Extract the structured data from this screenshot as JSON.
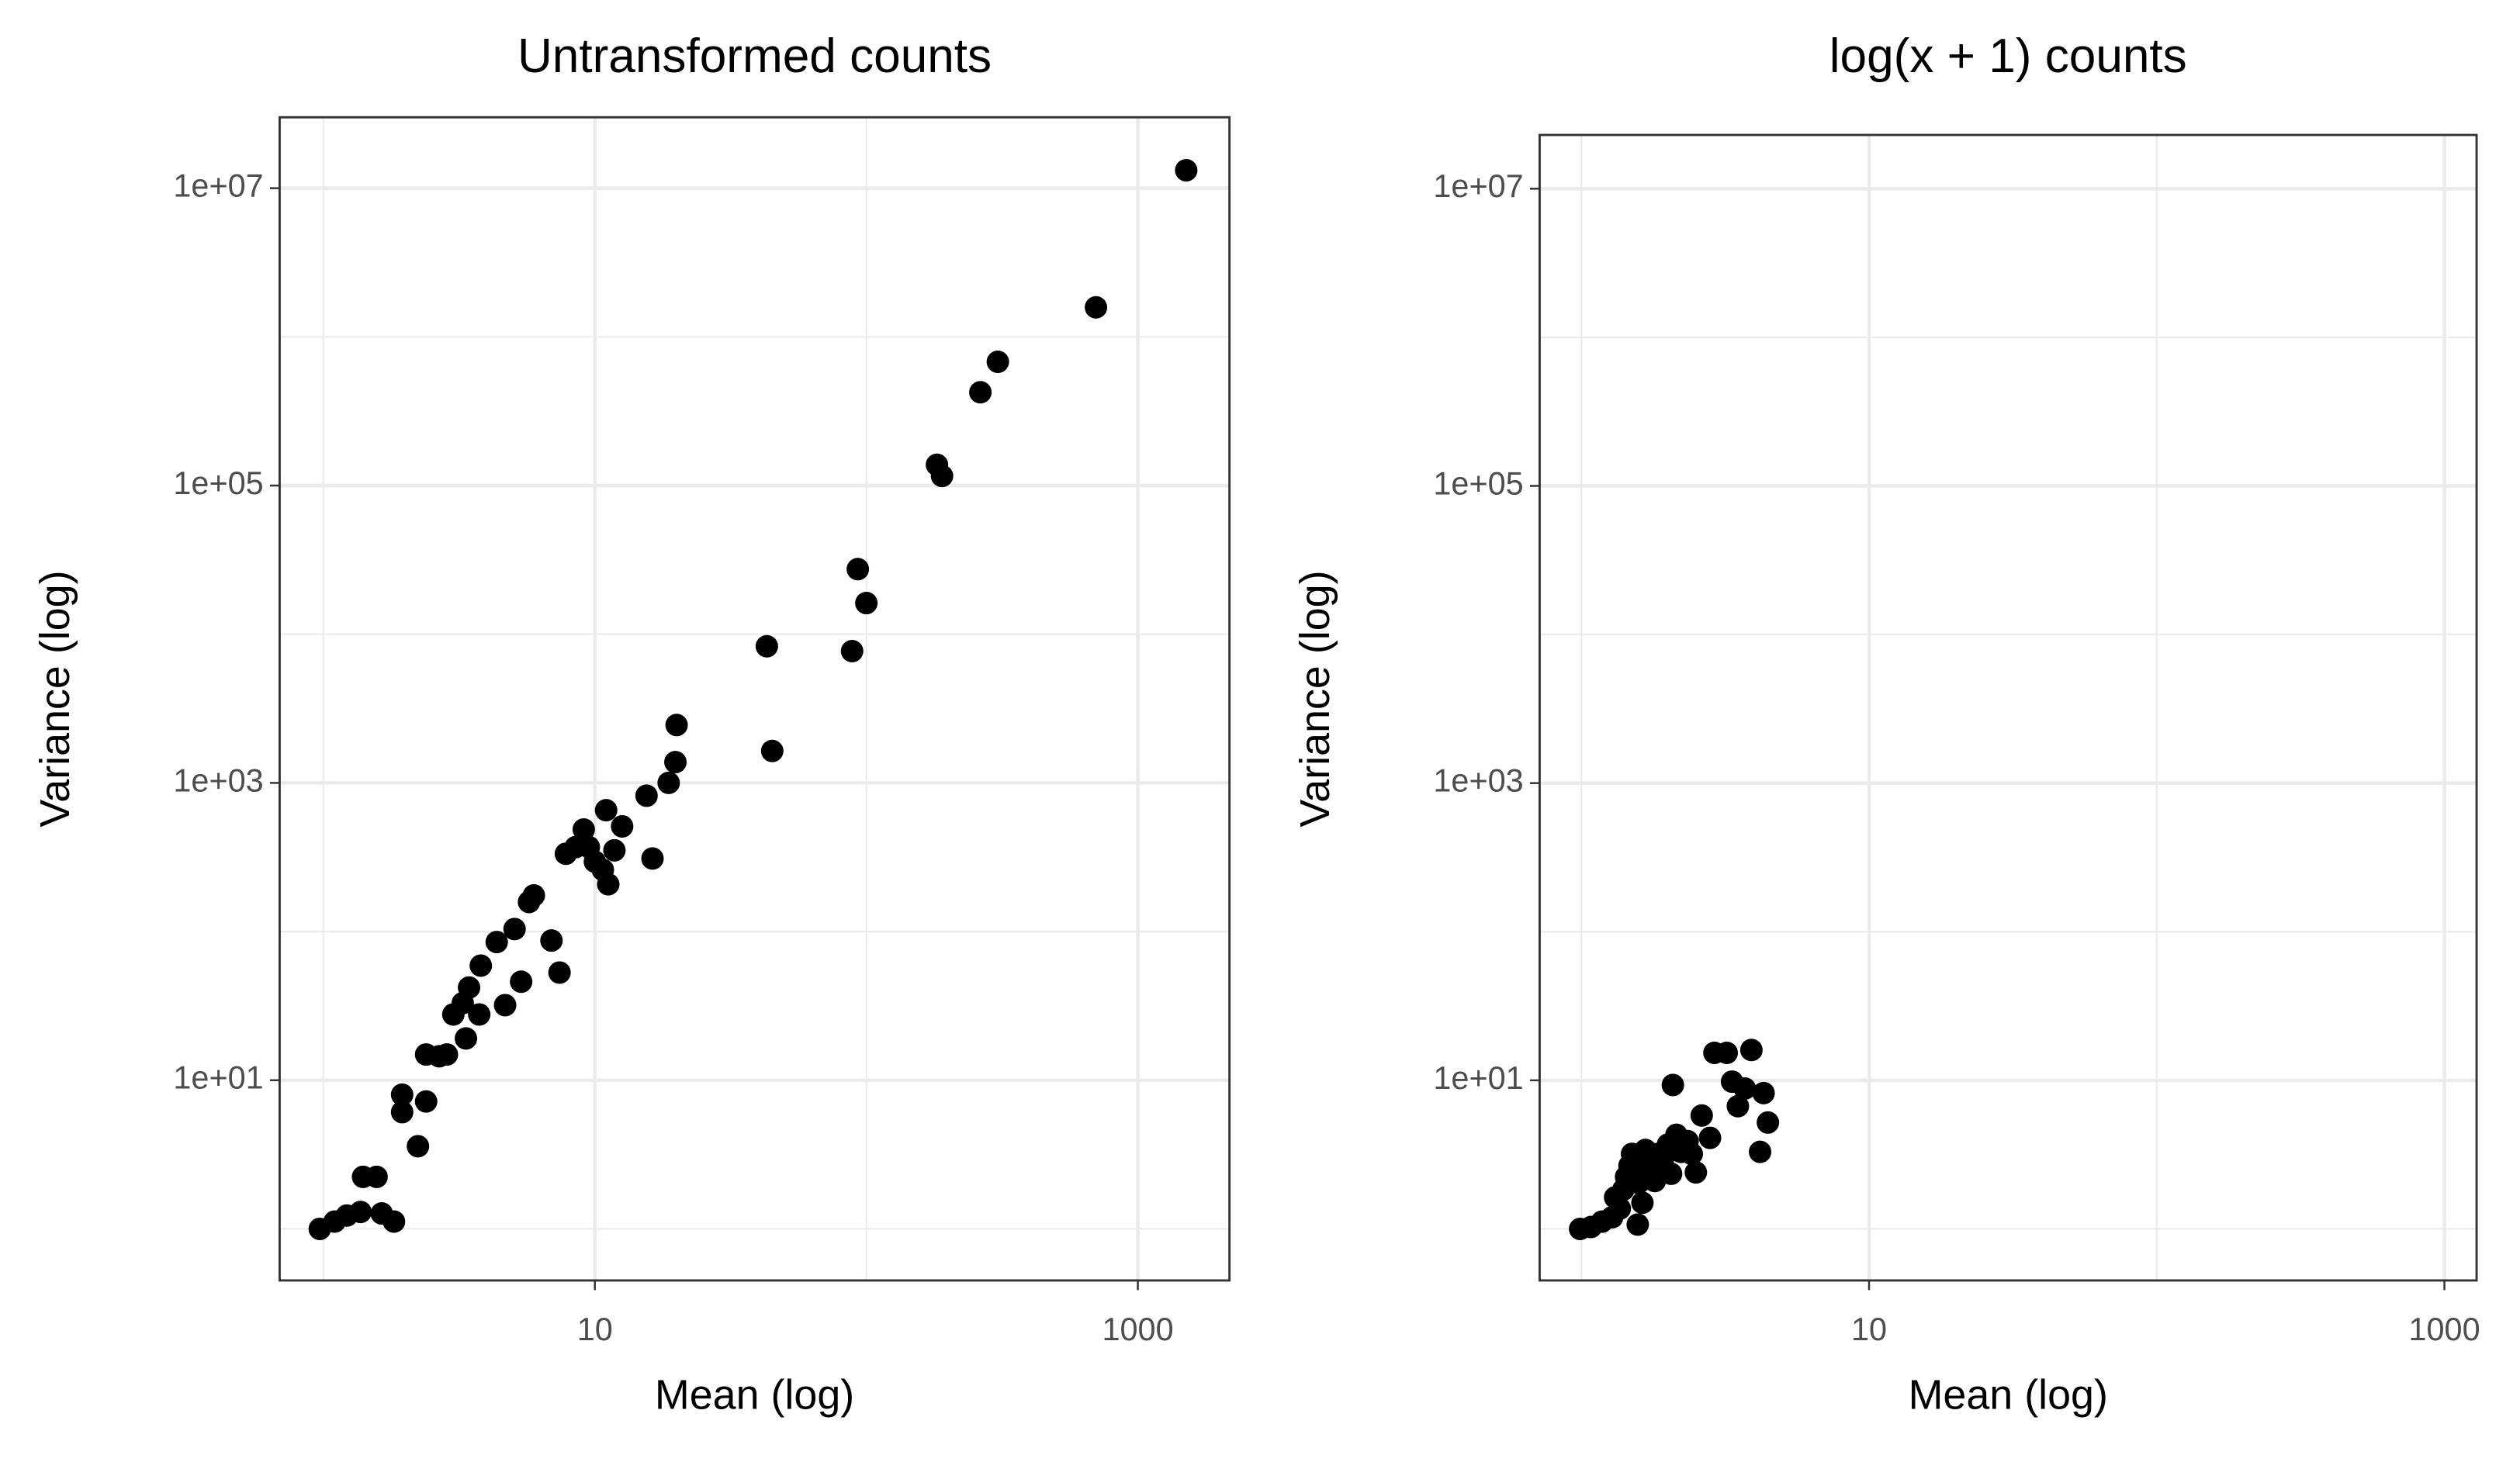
{
  "chart_data": [
    {
      "type": "scatter",
      "title": "Untransformed counts",
      "xlabel": "Mean (log)",
      "ylabel": "Variance (log)",
      "log_x": true,
      "log_y": true,
      "grid": true,
      "color": "#000000",
      "xlim": [
        0.69,
        2175
      ],
      "ylim": [
        0.45,
        30000000
      ],
      "xticks": [
        10,
        1000
      ],
      "minor_xticks": [
        1,
        100
      ],
      "yticks": [
        {
          "value": 10,
          "label": "1e+01"
        },
        {
          "value": 1000,
          "label": "1e+03"
        },
        {
          "value": 100000,
          "label": "1e+05"
        },
        {
          "value": 10000000,
          "label": "1e+07"
        }
      ],
      "minor_yticks": [
        1,
        100,
        10000,
        1000000
      ],
      "x": [
        0.97,
        1.1,
        1.22,
        1.37,
        1.4,
        1.57,
        1.64,
        1.82,
        1.95,
        1.95,
        2.23,
        2.39,
        2.39,
        2.67,
        2.85,
        3.01,
        3.26,
        3.35,
        3.44,
        3.75,
        3.8,
        4.35,
        4.67,
        5.06,
        5.35,
        5.72,
        5.96,
        6.92,
        7.41,
        7.82,
        8.5,
        9.1,
        9.5,
        10,
        10.7,
        11,
        11.2,
        11.8,
        12.6,
        15.5,
        16.3,
        18.7,
        19.8,
        20,
        43,
        45,
        88.6,
        93,
        100,
        182,
        190,
        263,
        305,
        701,
        1507
      ],
      "y": [
        1,
        1.12,
        1.23,
        1.3,
        2.24,
        2.24,
        1.27,
        1.12,
        8,
        6.1,
        3.6,
        7.2,
        14.9,
        14.5,
        14.9,
        27.7,
        33,
        19.1,
        42,
        27.7,
        59,
        85,
        32,
        104,
        46,
        158,
        175,
        87,
        53,
        334,
        370,
        486,
        370,
        295,
        260,
        655,
        208,
        352,
        510,
        820,
        310,
        1000,
        1380,
        2450,
        8300,
        1640,
        7700,
        27400,
        16200,
        138000,
        116000,
        424000,
        680000,
        1580000,
        13200000
      ]
    },
    {
      "type": "scatter",
      "title": "log(x + 1) counts",
      "xlabel": "Mean (log)",
      "ylabel": "Variance (log)",
      "log_x": true,
      "log_y": true,
      "grid": true,
      "color": "#000000",
      "xlim": [
        0.716,
        1294
      ],
      "ylim": [
        0.45,
        23000000
      ],
      "xticks": [
        10,
        1000
      ],
      "minor_xticks": [
        1,
        100
      ],
      "yticks": [
        {
          "value": 10,
          "label": "1e+01"
        },
        {
          "value": 1000,
          "label": "1e+03"
        },
        {
          "value": 100000,
          "label": "1e+05"
        },
        {
          "value": 10000000,
          "label": "1e+07"
        }
      ],
      "minor_yticks": [
        1,
        100,
        10000,
        1000000
      ],
      "x": [
        0.99,
        1.08,
        1.18,
        1.28,
        1.36,
        1.31,
        1.4,
        1.43,
        1.47,
        1.5,
        1.55,
        1.58,
        1.57,
        1.63,
        1.67,
        1.74,
        1.8,
        1.85,
        1.92,
        2.0,
        2.05,
        2.14,
        2.22,
        2.34,
        2.08,
        2.42,
        2.5,
        2.62,
        2.8,
        2.9,
        3.2,
        3.34,
        3.5,
        3.7,
        3.9,
        4.18,
        4.3,
        4.45
      ],
      "y": [
        1,
        1.03,
        1.12,
        1.2,
        1.37,
        1.63,
        1.84,
        2.24,
        2.67,
        3.2,
        2.5,
        2.04,
        1.07,
        1.5,
        3.4,
        2.67,
        2.1,
        3.2,
        2.9,
        3.7,
        2.35,
        4.3,
        3.3,
        3.9,
        9.3,
        3.2,
        2.4,
        5.8,
        4.1,
        15.3,
        15.3,
        9.8,
        6.7,
        8.8,
        16,
        3.3,
        8.2,
        5.2
      ]
    }
  ]
}
